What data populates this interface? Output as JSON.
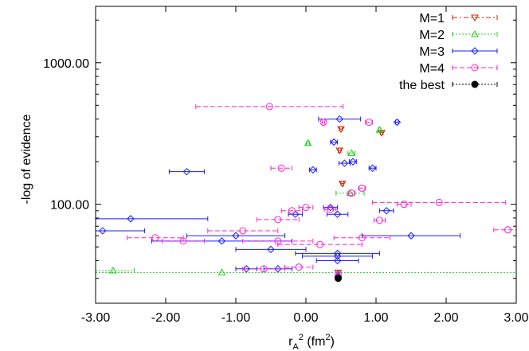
{
  "chart_data": {
    "type": "scatter",
    "xlabel": "r_A^2 (fm^2)",
    "ylabel": "-log of evidence",
    "xlim": [
      -3.0,
      3.0
    ],
    "ylim": [
      20,
      2500
    ],
    "y_scale": "log",
    "x_ticks": [
      "-3.00",
      "-2.00",
      "-1.00",
      "0.00",
      "1.00",
      "2.00",
      "3.00"
    ],
    "y_ticks": [
      "100.00",
      "1000.00"
    ],
    "legend_position": "top-right",
    "series": [
      {
        "name": "M=1",
        "color": "#cc2200",
        "marker": "triangle-down",
        "points": [
          [
            0.5,
            340,
            0.02
          ],
          [
            0.48,
            240,
            0.02
          ],
          [
            1.08,
            320,
            0.02
          ],
          [
            0.52,
            140,
            0.02
          ],
          [
            0.46,
            33,
            0.01
          ]
        ]
      },
      {
        "name": "M=2",
        "color": "#22cc22",
        "marker": "triangle-up",
        "points": [
          [
            0.03,
            270,
            0.02
          ],
          [
            0.65,
            230,
            0.05
          ],
          [
            0.63,
            120,
            0.2
          ],
          [
            1.05,
            335,
            0.02
          ],
          [
            -2.75,
            34,
            0.3
          ],
          [
            -1.2,
            33,
            4.5
          ],
          [
            0.46,
            32,
            0.02
          ]
        ]
      },
      {
        "name": "M=3",
        "color": "#1a1aff",
        "marker": "diamond",
        "points": [
          [
            -1.7,
            170,
            0.25
          ],
          [
            -2.5,
            79,
            1.1
          ],
          [
            -2.9,
            65,
            0.6
          ],
          [
            0.48,
            400,
            0.3
          ],
          [
            1.3,
            380,
            0.02
          ],
          [
            0.4,
            275,
            0.05
          ],
          [
            0.67,
            200,
            0.05
          ],
          [
            0.55,
            195,
            0.08
          ],
          [
            0.95,
            180,
            0.05
          ],
          [
            0.1,
            175,
            0.05
          ],
          [
            -0.15,
            85,
            0.1
          ],
          [
            0.35,
            95,
            0.1
          ],
          [
            0.45,
            85,
            0.15
          ],
          [
            1.15,
            90,
            0.1
          ],
          [
            -1.0,
            60,
            0.7
          ],
          [
            -1.2,
            55,
            1.0
          ],
          [
            1.5,
            60,
            0.7
          ],
          [
            -0.5,
            48,
            0.5
          ],
          [
            0.45,
            45,
            0.6
          ],
          [
            0.45,
            43,
            0.5
          ],
          [
            0.45,
            40,
            0.3
          ],
          [
            -0.4,
            35,
            0.2
          ],
          [
            -0.85,
            35,
            0.15
          ],
          [
            0.46,
            31,
            0.02
          ]
        ]
      },
      {
        "name": "M=4",
        "color": "#ff22cc",
        "marker": "circle",
        "points": [
          [
            -0.52,
            490,
            1.05
          ],
          [
            0.25,
            380,
            0.02
          ],
          [
            0.9,
            380,
            0.05
          ],
          [
            -0.35,
            180,
            0.15
          ],
          [
            0.8,
            130,
            0.05
          ],
          [
            0.65,
            120,
            0.05
          ],
          [
            0.0,
            95,
            0.1
          ],
          [
            1.9,
            103,
            0.95
          ],
          [
            1.4,
            100,
            0.1
          ],
          [
            0.35,
            92,
            0.08
          ],
          [
            1.05,
            77,
            0.08
          ],
          [
            -0.2,
            90,
            0.15
          ],
          [
            -0.4,
            78,
            0.3
          ],
          [
            -0.9,
            65,
            0.5
          ],
          [
            -2.15,
            58,
            0.4
          ],
          [
            -1.75,
            55,
            0.3
          ],
          [
            2.88,
            66,
            0.2
          ],
          [
            0.8,
            58,
            0.4
          ],
          [
            -0.4,
            55,
            0.5
          ],
          [
            0.2,
            52,
            0.6
          ],
          [
            -0.6,
            35,
            0.3
          ],
          [
            -0.1,
            36,
            0.2
          ],
          [
            0.46,
            32,
            0.02
          ]
        ]
      },
      {
        "name": "the best",
        "color": "#000000",
        "marker": "filled-circle",
        "points": [
          [
            0.46,
            30,
            0.02
          ]
        ]
      }
    ]
  }
}
